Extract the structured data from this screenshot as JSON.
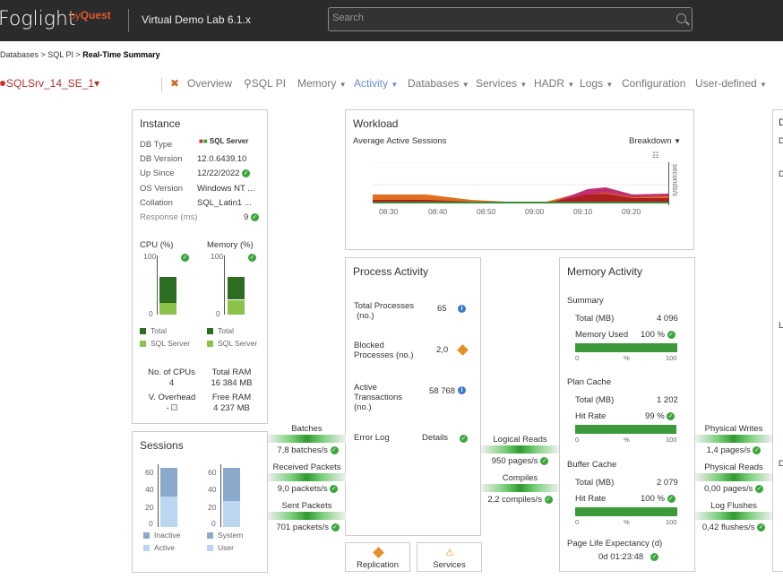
{
  "header": {
    "logo": "Foglight",
    "byquest": "Quest",
    "app_title": "Virtual Demo Lab 6.1.x",
    "search_placeholder": "Search"
  },
  "breadcrumb": {
    "items": [
      "Databases",
      "SQL PI"
    ],
    "current": "Real-Time Summary"
  },
  "nav": {
    "instance": "SQLSrv_14_SE_1",
    "items": [
      "Overview",
      "SQL PI",
      "Memory",
      "Activity",
      "Databases",
      "Services",
      "HADR",
      "Logs",
      "Configuration",
      "User-defined"
    ],
    "active": "Activity"
  },
  "instance": {
    "title": "Instance",
    "labels": [
      "DB Type",
      "DB Version",
      "Up Since",
      "OS Version",
      "Collation",
      "Response (ms)"
    ],
    "values": [
      "",
      "12.0.6439.10",
      "12/22/2022",
      "Windows NT ...",
      "SQL_Latin1 ...",
      "9"
    ],
    "db_type_logo": "SQL Server",
    "cpu_title": "CPU (%)",
    "mem_title": "Memory (%)",
    "axis_top": "100",
    "axis_bottom": "0",
    "cpu_total": 63,
    "cpu_sql": 20,
    "mem_total": 63,
    "mem_sql": 25,
    "legend_total": "Total",
    "legend_sql": "SQL Server",
    "cpus_label": "No. of CPUs",
    "cpus": "4",
    "ram_label": "Total RAM",
    "ram": "16 384 MB",
    "overhead_label": "V. Overhead",
    "overhead": "-",
    "free_label": "Free RAM",
    "free": "4 237 MB"
  },
  "sessions": {
    "title": "Sessions",
    "ticks": [
      "60",
      "40",
      "20",
      "0"
    ],
    "legend": [
      "Inactive",
      "Active",
      "System",
      "User"
    ]
  },
  "workload": {
    "title": "Workload",
    "subtitle": "Average Active Sessions",
    "breakdown": "Breakdown",
    "yaxis": "seconds/s",
    "times": [
      "08:30",
      "08:40",
      "08:50",
      "09:00",
      "09:10",
      "09:20"
    ]
  },
  "process": {
    "title": "Process Activity",
    "rows": [
      {
        "l1": "Total Processes",
        "l2": "(no.)",
        "v": "65"
      },
      {
        "l1": "Blocked",
        "l2": "Processes (no.)",
        "v": "2,0"
      },
      {
        "l1": "Active",
        "l2": "Transactions",
        "l3": "(no.)",
        "v": "58 768"
      }
    ],
    "errorlog": "Error Log",
    "details": "Details"
  },
  "flows_left": [
    {
      "label": "Batches",
      "value": "7,8 batches/s"
    },
    {
      "label": "Received Packets",
      "value": "9,0 packets/s"
    },
    {
      "label": "Sent Packets",
      "value": "701 packets/s"
    }
  ],
  "flows_mid": [
    {
      "label": "Logical Reads",
      "value": "950 pages/s"
    },
    {
      "label": "Compiles",
      "value": "2,2 compiles/s"
    }
  ],
  "flows_right": [
    {
      "label": "Physical Writes",
      "value": "1,4 pages/s"
    },
    {
      "label": "Physical Reads",
      "value": "0,00 pages/s"
    },
    {
      "label": "Log Flushes",
      "value": "0,42 flushes/s"
    }
  ],
  "memory": {
    "title": "Memory Activity",
    "summary": {
      "title": "Summary",
      "total_label": "Total (MB)",
      "total": "4 096",
      "used_label": "Memory Used",
      "used": "100 %",
      "used_pct": 100
    },
    "plan": {
      "title": "Plan Cache",
      "total_label": "Total (MB)",
      "total": "1 202",
      "hit_label": "Hit Rate",
      "hit": "99 %",
      "hit_pct": 99
    },
    "buffer": {
      "title": "Buffer Cache",
      "total_label": "Total (MB)",
      "total": "2 079",
      "hit_label": "Hit Rate",
      "hit": "100 %",
      "hit_pct": 100
    },
    "scale": [
      "0",
      "%",
      "100"
    ],
    "ple_label": "Page Life Expectancy (d)",
    "ple": "0d 01:23:48"
  },
  "buttons": {
    "replication": "Replication",
    "services": "Services"
  },
  "right_panel_letters": [
    "D",
    "D",
    "D",
    "L",
    "D"
  ]
}
